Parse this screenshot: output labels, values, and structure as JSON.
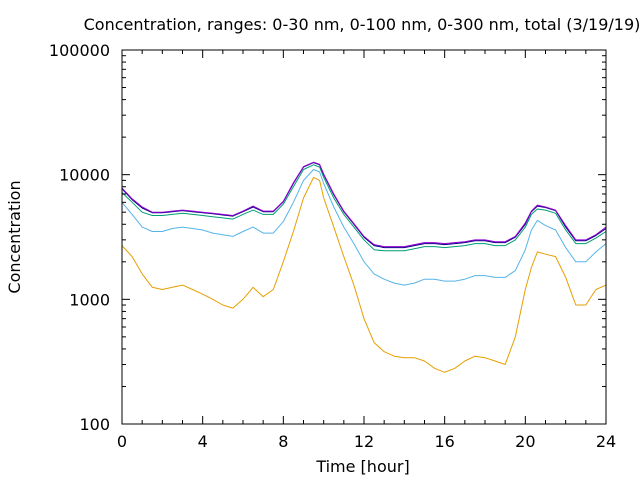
{
  "chart_data": {
    "type": "line",
    "title": "Concentration, ranges: 0-30 nm, 0-100 nm, 0-300 nm, total (3/19/19)",
    "xlabel": "Time [hour]",
    "ylabel": "Concentration",
    "xlim": [
      0,
      24
    ],
    "ylim": [
      100,
      100000
    ],
    "yscale": "log",
    "grid": false,
    "legend": "none",
    "x_ticks": [
      0,
      4,
      8,
      12,
      16,
      20,
      24
    ],
    "x_tick_labels": [
      "0",
      "4",
      "8",
      "12",
      "16",
      "20",
      "24"
    ],
    "y_ticks": [
      100,
      1000,
      10000,
      100000
    ],
    "y_tick_labels": [
      "100",
      "1000",
      "10000",
      "100000"
    ],
    "x": [
      0,
      0.5,
      1,
      1.5,
      2,
      2.5,
      3,
      3.5,
      4,
      4.5,
      5,
      5.5,
      6,
      6.5,
      7,
      7.5,
      8,
      8.5,
      9,
      9.5,
      9.8,
      10,
      10.5,
      11,
      11.5,
      12,
      12.5,
      13,
      13.5,
      14,
      14.5,
      15,
      15.5,
      16,
      16.5,
      17,
      17.5,
      18,
      18.5,
      19,
      19.5,
      20,
      20.3,
      20.6,
      21,
      21.5,
      22,
      22.5,
      23,
      23.5,
      24
    ],
    "series": [
      {
        "color": "#e69f00",
        "values": [
          2700,
          2200,
          1600,
          1250,
          1200,
          1250,
          1300,
          1200,
          1100,
          1000,
          900,
          850,
          1000,
          1250,
          1050,
          1200,
          2000,
          3500,
          6500,
          9500,
          9000,
          6500,
          3800,
          2200,
          1300,
          700,
          450,
          380,
          350,
          340,
          340,
          320,
          280,
          260,
          280,
          320,
          350,
          340,
          320,
          300,
          500,
          1200,
          1800,
          2400,
          2300,
          2200,
          1500,
          900,
          900,
          1200,
          1300
        ]
      },
      {
        "color": "#56b4e9",
        "values": [
          6000,
          4800,
          3800,
          3500,
          3500,
          3700,
          3800,
          3700,
          3600,
          3400,
          3300,
          3200,
          3500,
          3800,
          3400,
          3400,
          4200,
          6000,
          9000,
          11000,
          10500,
          8500,
          5500,
          3800,
          2800,
          2000,
          1600,
          1450,
          1350,
          1300,
          1350,
          1450,
          1450,
          1400,
          1400,
          1450,
          1550,
          1550,
          1500,
          1500,
          1700,
          2500,
          3600,
          4300,
          3900,
          3600,
          2600,
          2000,
          2000,
          2400,
          2800
        ]
      },
      {
        "color": "#009e73",
        "values": [
          7200,
          6000,
          5000,
          4700,
          4700,
          4800,
          4900,
          4800,
          4700,
          4600,
          4500,
          4400,
          4800,
          5200,
          4800,
          4800,
          5800,
          8000,
          11000,
          12000,
          11500,
          9500,
          6500,
          4800,
          3800,
          3000,
          2500,
          2450,
          2450,
          2450,
          2550,
          2650,
          2650,
          2600,
          2650,
          2700,
          2800,
          2800,
          2700,
          2700,
          3000,
          3800,
          4800,
          5300,
          5200,
          4900,
          3600,
          2800,
          2800,
          3100,
          3500
        ]
      },
      {
        "color": "#000080",
        "values": [
          7700,
          6300,
          5400,
          4950,
          4950,
          5050,
          5150,
          5050,
          4950,
          4850,
          4750,
          4650,
          5050,
          5500,
          5050,
          5050,
          6050,
          8500,
          11500,
          12500,
          12000,
          10000,
          6900,
          5050,
          4000,
          3150,
          2700,
          2600,
          2600,
          2600,
          2700,
          2800,
          2800,
          2750,
          2800,
          2850,
          2950,
          2950,
          2850,
          2850,
          3150,
          4000,
          5050,
          5600,
          5450,
          5150,
          3800,
          2950,
          2950,
          3250,
          3700
        ]
      },
      {
        "color": "#9400d3",
        "values": [
          7800,
          6400,
          5500,
          5000,
          5000,
          5100,
          5200,
          5100,
          5000,
          4900,
          4800,
          4700,
          5100,
          5600,
          5100,
          5100,
          6100,
          8600,
          11600,
          12600,
          12100,
          10100,
          7000,
          5100,
          4050,
          3200,
          2750,
          2650,
          2650,
          2650,
          2750,
          2850,
          2850,
          2800,
          2850,
          2900,
          3000,
          3000,
          2900,
          2900,
          3200,
          4100,
          5100,
          5700,
          5500,
          5200,
          3900,
          3000,
          3000,
          3300,
          3800
        ]
      }
    ]
  }
}
